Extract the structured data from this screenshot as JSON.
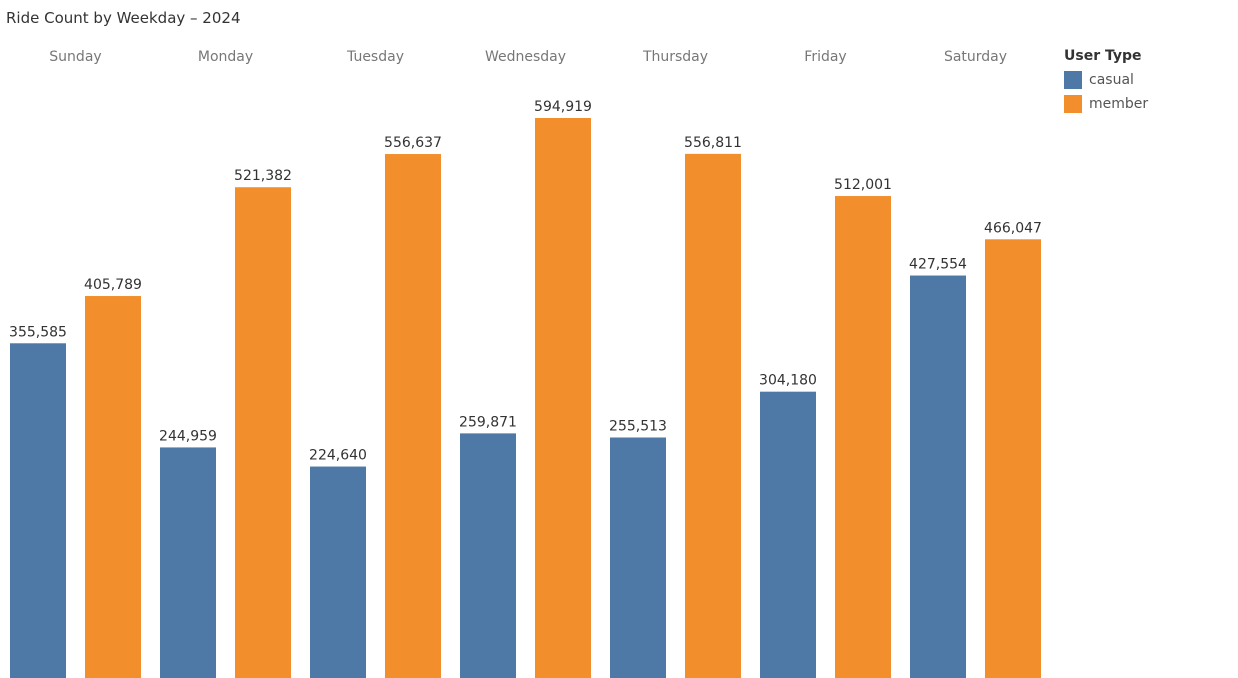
{
  "chart_data": {
    "type": "bar",
    "title": "Ride Count by Weekday – 2024",
    "categories": [
      "Sunday",
      "Monday",
      "Tuesday",
      "Wednesday",
      "Thursday",
      "Friday",
      "Saturday"
    ],
    "series": [
      {
        "name": "casual",
        "color": "#4e79a7",
        "values": [
          355585,
          244959,
          224640,
          259871,
          255513,
          304180,
          427554
        ]
      },
      {
        "name": "member",
        "color": "#f28e2b",
        "values": [
          405789,
          521382,
          556637,
          594919,
          556811,
          512001,
          466047
        ]
      }
    ],
    "data_labels": [
      [
        "355,585",
        "244,959",
        "224,640",
        "259,871",
        "255,513",
        "304,180",
        "427,554"
      ],
      [
        "405,789",
        "521,382",
        "556,637",
        "594,919",
        "556,811",
        "512,001",
        "466,047"
      ]
    ],
    "legend": {
      "title": "User Type",
      "position": "top-right"
    },
    "ylim": [
      0,
      650000
    ],
    "grid": false,
    "xlabel": "",
    "ylabel": ""
  }
}
